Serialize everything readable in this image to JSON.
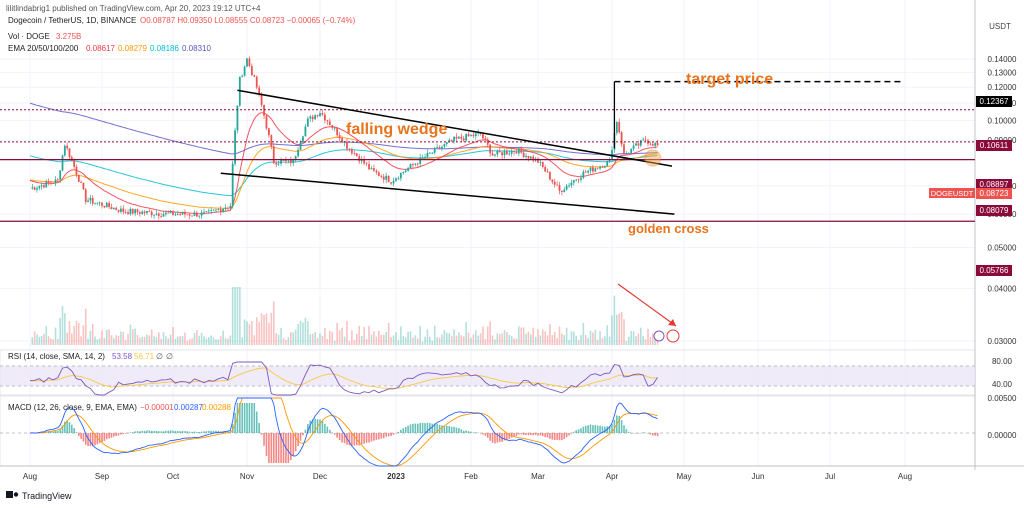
{
  "header": {
    "author_line": "lilitlindabrig1 published on TradingView.com, Apr 20, 2023 19:12 UTC+4",
    "currency": "USDT"
  },
  "legend": {
    "symbol": "Dogecoin / TetherUS, 1D, BINANCE",
    "ohlc": "O0.08787 H0.09350 L0.08555 C0.08723 −0.00065 (−0.74%)",
    "vol_label": "Vol · DOGE",
    "vol_value": "3.275B",
    "ema_label": "EMA 20/50/100/200",
    "ema_values": [
      "0.08617",
      "0.08279",
      "0.08186",
      "0.08310"
    ],
    "rsi_label": "RSI (14, close, SMA, 14, 2)",
    "rsi_values": [
      "53.58",
      "56.71",
      "∅",
      "∅"
    ],
    "macd_label": "MACD (12, 26, close, 9, EMA, EMA)",
    "macd_values": [
      "−0.00001",
      "0.00287",
      "0.00288"
    ]
  },
  "annotations": {
    "falling_wedge": "falling wedge",
    "target_price": "target price",
    "golden_cross": "golden cross"
  },
  "price_tags": {
    "symbol_tag": "DOGEUSDT",
    "last": "0.08723",
    "levels": [
      "0.12367",
      "0.10611",
      "0.08897",
      "0.08079",
      "0.05766"
    ]
  },
  "footer": {
    "brand": "TradingView"
  },
  "colors": {
    "up": "#26a69a",
    "down": "#ef5350",
    "ema20": "#f23645",
    "ema50": "#ff9800",
    "ema100": "#00bcd4",
    "ema200": "#5b55c9",
    "level": "#8b0a3a",
    "annot": "#e8741e",
    "rsi": "#7e57c2"
  },
  "chart_data": {
    "type": "candlestick",
    "xlabels": [
      "Aug",
      "Sep",
      "Oct",
      "Nov",
      "Dec",
      "2023",
      "Feb",
      "Mar",
      "Apr",
      "May",
      "Jun",
      "Jul",
      "Aug"
    ],
    "y_ticks": [
      "0.14000",
      "0.13000",
      "0.12000",
      "0.11000",
      "0.10000",
      "0.09000",
      "0.07000",
      "0.06000",
      "0.05000",
      "0.04000",
      "0.03000"
    ],
    "rsi_ticks": [
      "80.00",
      "40.00"
    ],
    "macd_ticks": [
      "0.00500",
      "0.00000"
    ],
    "close_path": [
      [
        "2022-08-01",
        0.069
      ],
      [
        "2022-08-13",
        0.072
      ],
      [
        "2022-08-16",
        0.088
      ],
      [
        "2022-08-25",
        0.065
      ],
      [
        "2022-09-10",
        0.061
      ],
      [
        "2022-09-30",
        0.06
      ],
      [
        "2022-10-15",
        0.06
      ],
      [
        "2022-10-25",
        0.063
      ],
      [
        "2022-10-29",
        0.125
      ],
      [
        "2022-11-01",
        0.14
      ],
      [
        "2022-11-05",
        0.12
      ],
      [
        "2022-11-12",
        0.08
      ],
      [
        "2022-11-20",
        0.08
      ],
      [
        "2022-11-26",
        0.1
      ],
      [
        "2022-12-01",
        0.105
      ],
      [
        "2022-12-12",
        0.087
      ],
      [
        "2022-12-22",
        0.076
      ],
      [
        "2022-12-30",
        0.072
      ],
      [
        "2023-01-10",
        0.08
      ],
      [
        "2023-01-25",
        0.09
      ],
      [
        "2023-02-05",
        0.093
      ],
      [
        "2023-02-10",
        0.083
      ],
      [
        "2023-02-20",
        0.085
      ],
      [
        "2023-03-01",
        0.08
      ],
      [
        "2023-03-10",
        0.068
      ],
      [
        "2023-03-20",
        0.075
      ],
      [
        "2023-03-31",
        0.08
      ],
      [
        "2023-04-03",
        0.1
      ],
      [
        "2023-04-06",
        0.083
      ],
      [
        "2023-04-15",
        0.09
      ],
      [
        "2023-04-20",
        0.0872
      ]
    ],
    "ema200_path": [
      [
        "2022-08-01",
        0.11
      ],
      [
        "2022-09-15",
        0.092
      ],
      [
        "2022-11-15",
        0.087
      ],
      [
        "2023-02-15",
        0.086
      ],
      [
        "2023-04-20",
        0.0831
      ]
    ],
    "ema100_path": [
      [
        "2022-08-01",
        0.083
      ],
      [
        "2022-10-25",
        0.072
      ],
      [
        "2022-12-01",
        0.088
      ],
      [
        "2023-02-15",
        0.086
      ],
      [
        "2023-04-20",
        0.0819
      ]
    ],
    "wedge_upper": [
      [
        "2022-10-28",
        0.118
      ],
      [
        "2023-04-26",
        0.078
      ]
    ],
    "wedge_lower": [
      [
        "2022-10-21",
        0.075
      ],
      [
        "2023-04-27",
        0.06
      ]
    ],
    "target_line": [
      [
        "2023-04-02",
        0.086
      ],
      [
        "2023-04-02",
        0.1237
      ],
      [
        "2023-07-31",
        0.1237
      ]
    ],
    "horizontal_levels": [
      0.1061,
      0.089,
      0.0808,
      0.0577
    ]
  }
}
